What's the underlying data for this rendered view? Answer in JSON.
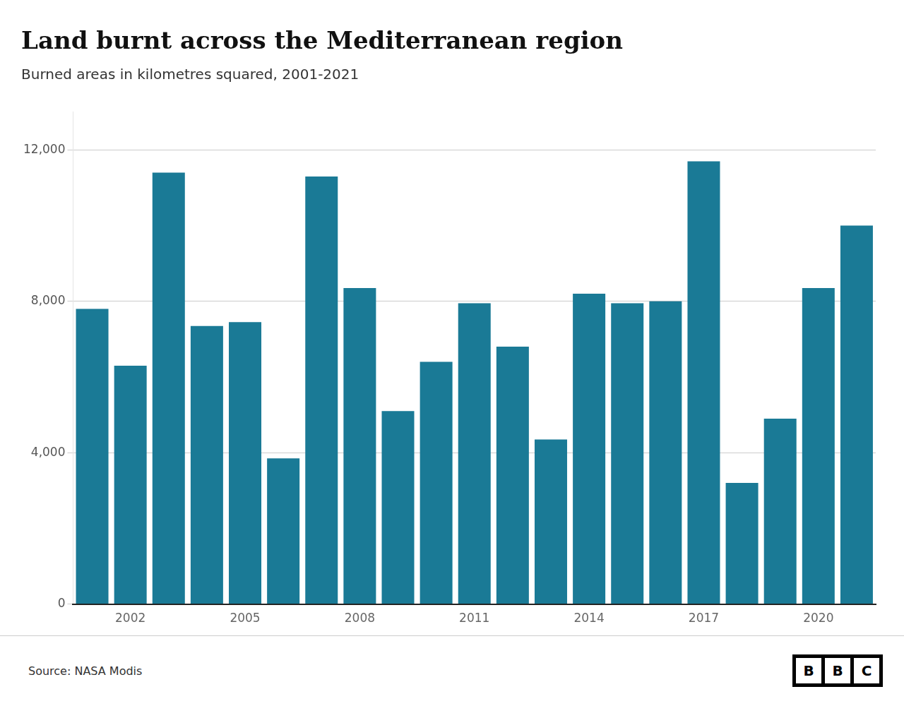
{
  "chart_data": {
    "type": "bar",
    "title": "Land burnt across the Mediterranean region",
    "subtitle": "Burned areas in kilometres squared, 2001-2021",
    "source": "Source: NASA Modis",
    "annotations": [
      "BBC"
    ],
    "categories": [
      null,
      2002,
      null,
      null,
      2005,
      null,
      null,
      2008,
      null,
      null,
      2011,
      null,
      null,
      2014,
      null,
      null,
      2017,
      null,
      null,
      2020,
      null
    ],
    "values": [
      7800,
      6300,
      11400,
      7350,
      7450,
      3850,
      11300,
      8350,
      5100,
      6400,
      7950,
      6800,
      4350,
      8200,
      7950,
      8000,
      11700,
      3200,
      4900,
      8350,
      10000
    ],
    "color": "#1a7a96",
    "ylim": [
      0,
      13000
    ],
    "yticks": [
      0,
      {
        "value": 4000,
        "label": "4,000"
      },
      {
        "value": 8000,
        "label": "8,000"
      },
      {
        "value": 12000,
        "label": "12,000"
      }
    ],
    "grid": true
  }
}
